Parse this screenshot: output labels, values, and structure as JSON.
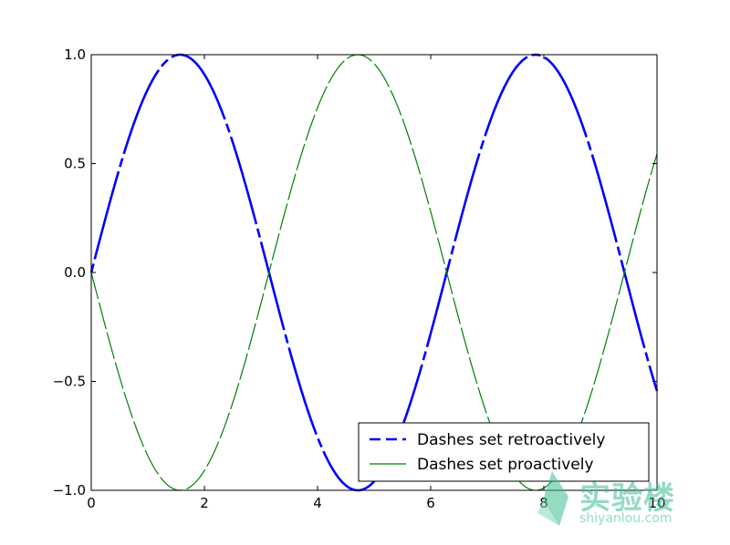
{
  "chart_data": {
    "type": "line",
    "title": "",
    "xlabel": "",
    "ylabel": "",
    "xlim": [
      0,
      10
    ],
    "ylim": [
      -1.0,
      1.0
    ],
    "xticks": [
      0,
      2,
      4,
      6,
      8,
      10
    ],
    "xtick_labels": [
      "0",
      "2",
      "4",
      "6",
      "8",
      "10"
    ],
    "yticks": [
      -1.0,
      -0.5,
      0.0,
      0.5,
      1.0
    ],
    "ytick_labels": [
      "−1.0",
      "−0.5",
      "0.0",
      "0.5",
      "1.0"
    ],
    "grid": false,
    "legend_position": "lower-right",
    "series": [
      {
        "name": "Dashes set retroactively",
        "function": "sin(x)",
        "color": "#0000ff",
        "style": "custom dashes, thick"
      },
      {
        "name": "Dashes set proactively",
        "function": "-sin(x)",
        "color": "#008000",
        "style": "long dashes with short gaps, thin"
      }
    ]
  },
  "watermark": {
    "brand": "实验楼",
    "domain": "shiyanlou.com",
    "color": "#3fbf8f"
  }
}
